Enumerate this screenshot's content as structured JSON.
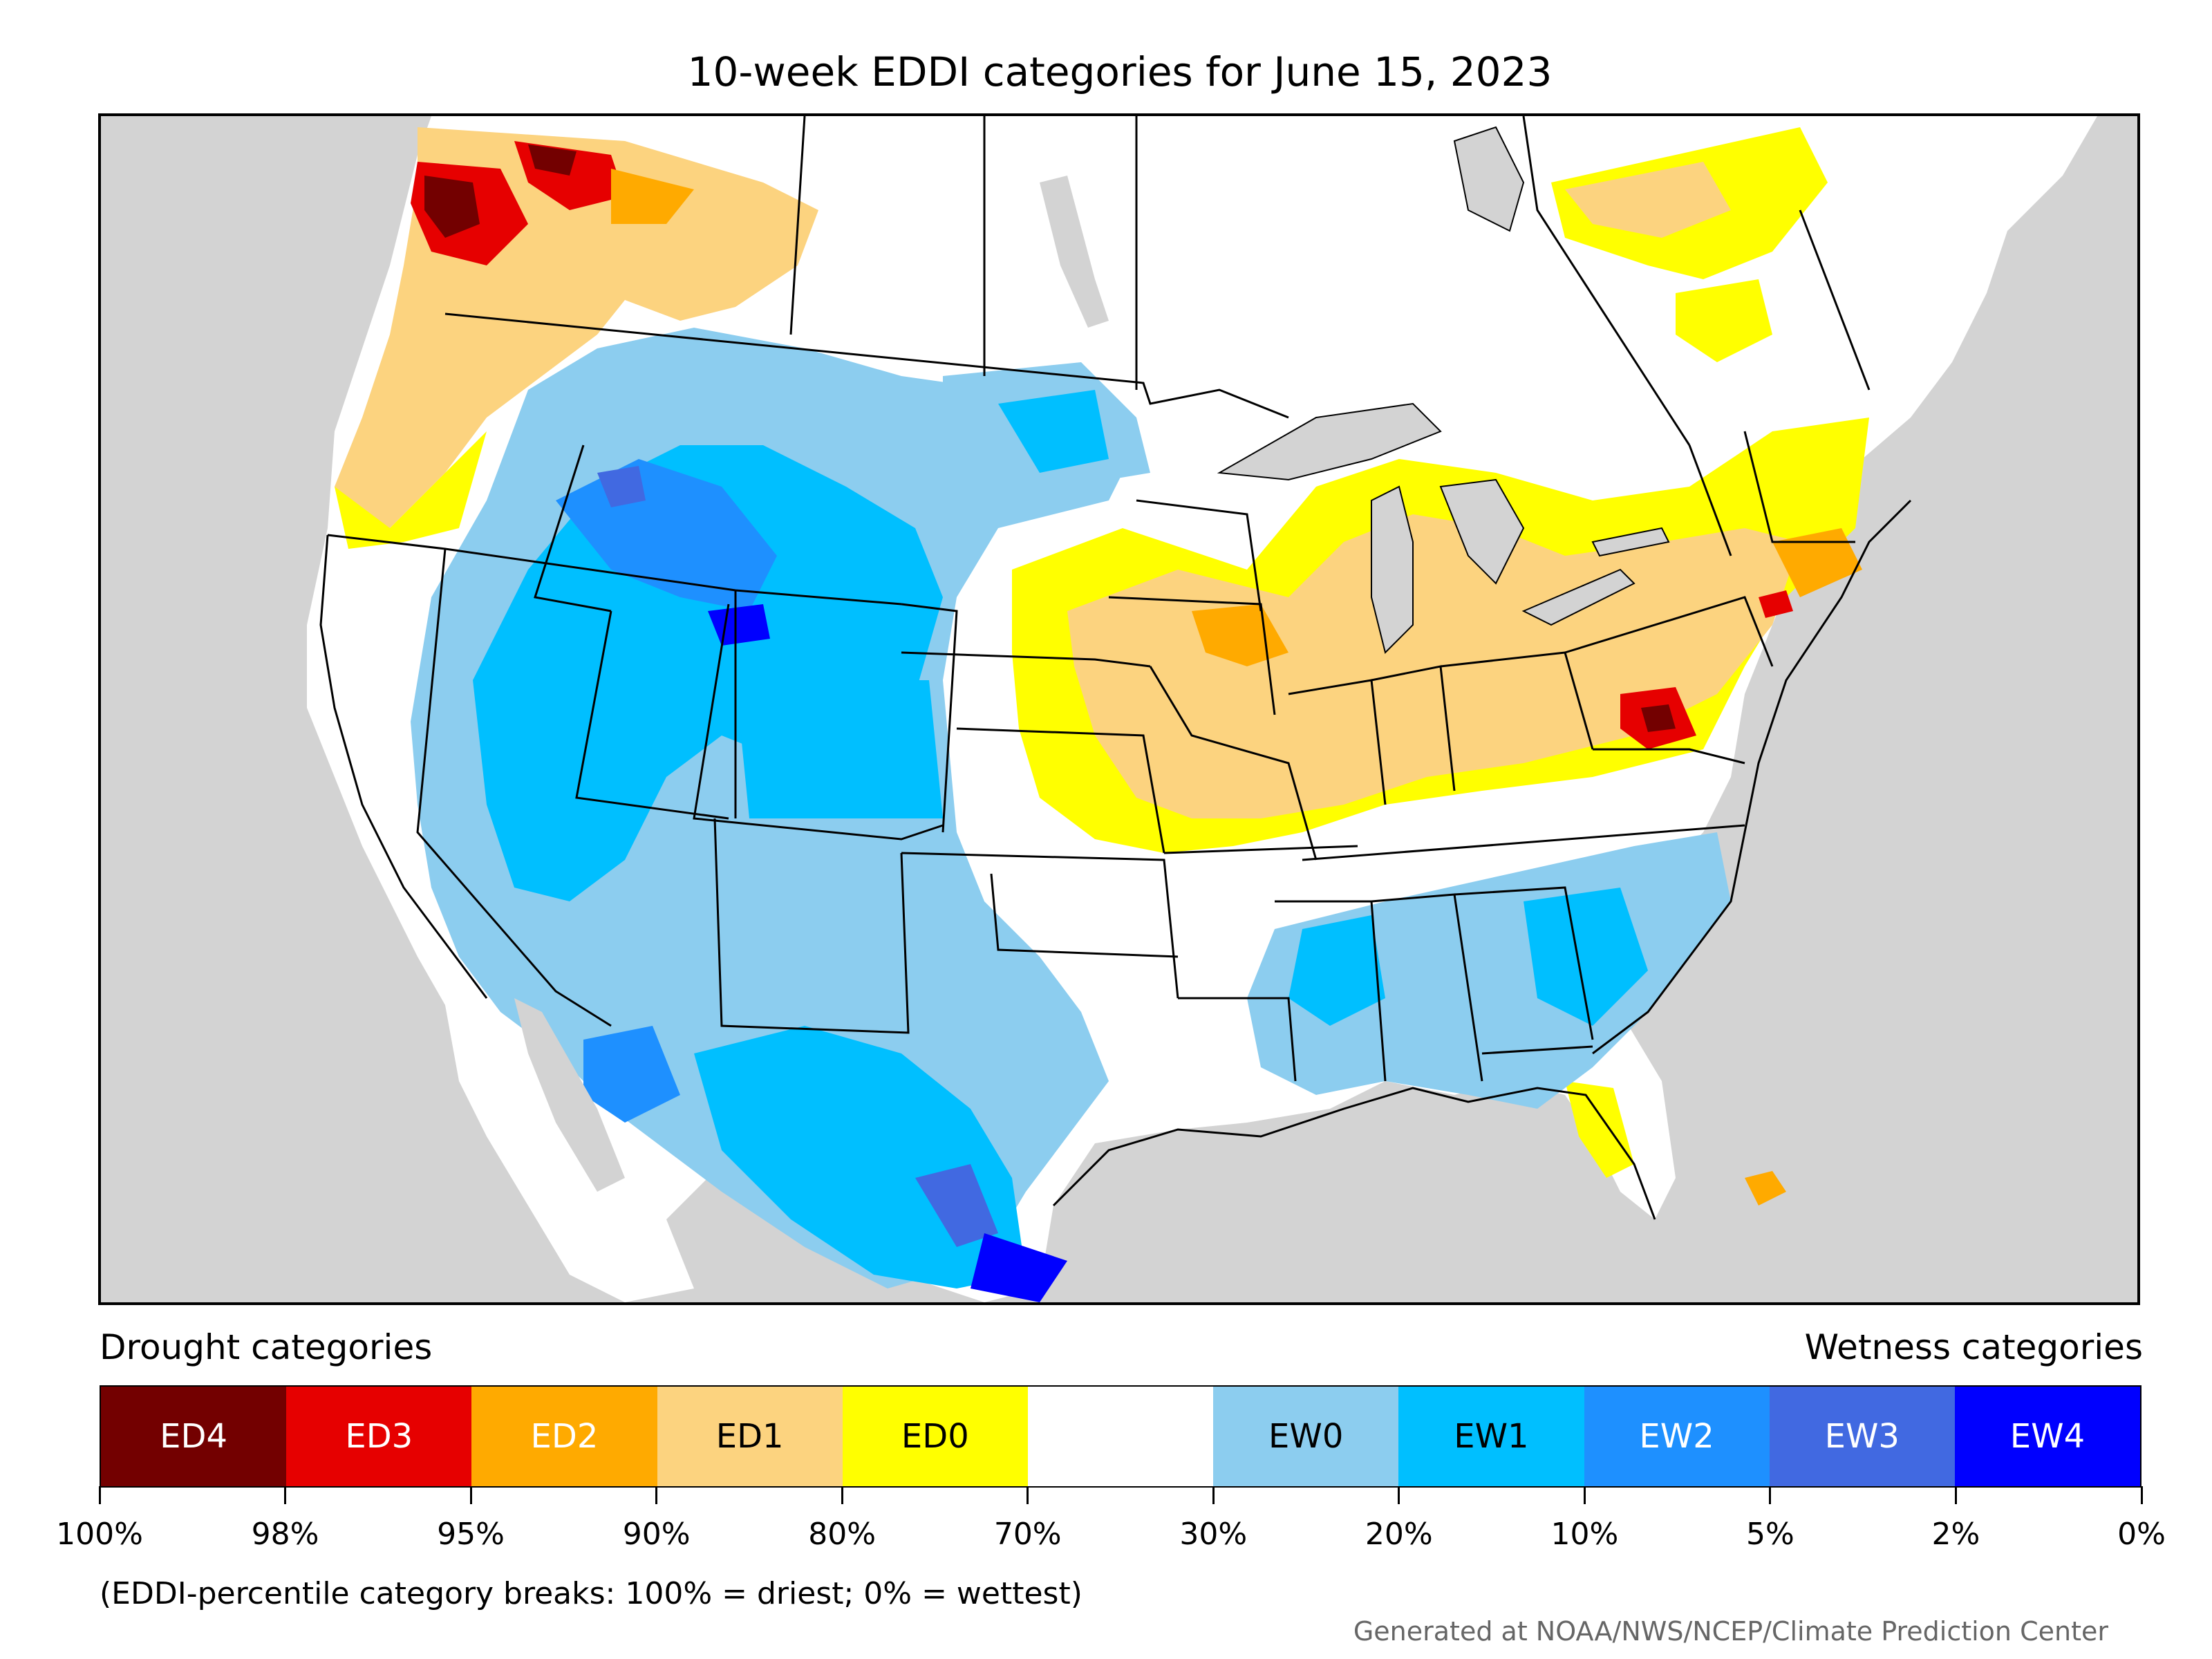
{
  "title": "10-week EDDI categories for June 15, 2023",
  "legend": {
    "drought_heading": "Drought categories",
    "wetness_heading": "Wetness categories",
    "categories": [
      {
        "label": "ED4",
        "color": "#730000",
        "text_color": "#ffffff"
      },
      {
        "label": "ED3",
        "color": "#e60000",
        "text_color": "#ffffff"
      },
      {
        "label": "ED2",
        "color": "#ffaa00",
        "text_color": "#ffffff"
      },
      {
        "label": "ED1",
        "color": "#fcd37f",
        "text_color": "#000000"
      },
      {
        "label": "ED0",
        "color": "#ffff00",
        "text_color": "#000000"
      },
      {
        "label": "",
        "color": "#ffffff",
        "text_color": "#000000"
      },
      {
        "label": "EW0",
        "color": "#8ccdef",
        "text_color": "#000000"
      },
      {
        "label": "EW1",
        "color": "#00bfff",
        "text_color": "#000000"
      },
      {
        "label": "EW2",
        "color": "#1e90ff",
        "text_color": "#ffffff"
      },
      {
        "label": "EW3",
        "color": "#4169e1",
        "text_color": "#ffffff"
      },
      {
        "label": "EW4",
        "color": "#0000ff",
        "text_color": "#ffffff"
      }
    ],
    "tick_labels": [
      "100%",
      "98%",
      "95%",
      "90%",
      "80%",
      "70%",
      "30%",
      "20%",
      "10%",
      "5%",
      "2%",
      "0%"
    ]
  },
  "footnote": "(EDDI-percentile category breaks: 100% = driest; 0% = wettest)",
  "credit": "Generated at NOAA/NWS/NCEP/Climate Prediction Center",
  "map": {
    "region": "Contiguous United States with southern Canada and northern Mexico",
    "ocean_color": "#d3d3d3",
    "land_color": "#ffffff",
    "boundary_color": "#000000"
  }
}
